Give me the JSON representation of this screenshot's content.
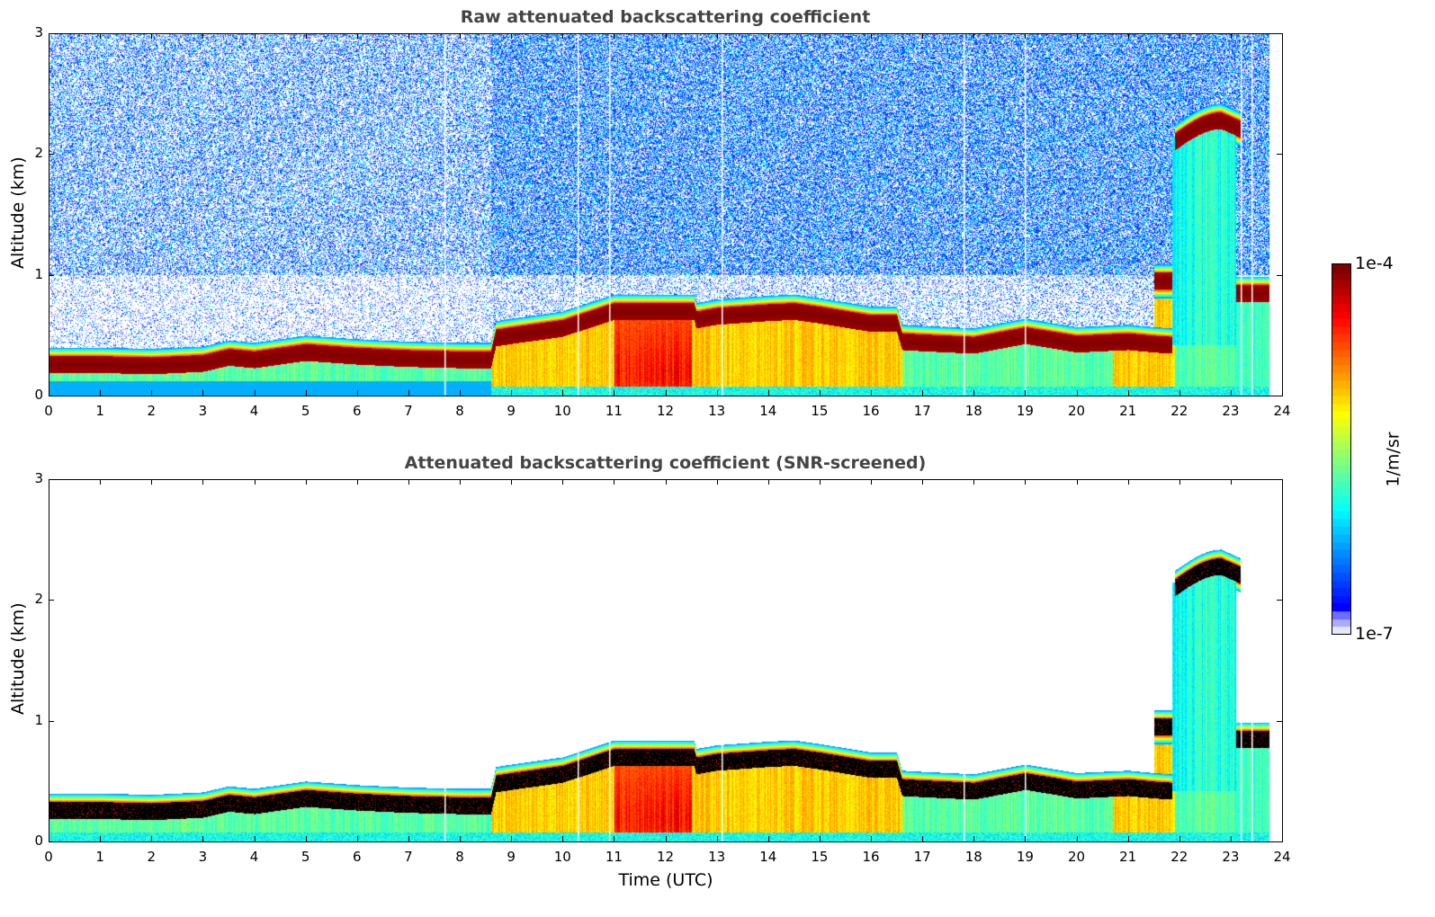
{
  "chart_data": [
    {
      "type": "heatmap",
      "title": "Raw attenuated backscattering coefficient",
      "xlabel": "",
      "ylabel": "Altitude (km)",
      "xlim": [
        0,
        24
      ],
      "ylim": [
        0,
        3
      ],
      "x_ticks": [
        "0",
        "1",
        "2",
        "3",
        "4",
        "5",
        "6",
        "7",
        "8",
        "9",
        "10",
        "11",
        "12",
        "13",
        "14",
        "15",
        "16",
        "17",
        "18",
        "19",
        "20",
        "21",
        "22",
        "23",
        "24"
      ],
      "y_ticks": [
        "0",
        "1",
        "2",
        "3"
      ],
      "screened": false
    },
    {
      "type": "heatmap",
      "title": "Attenuated backscattering coefficient (SNR-screened)",
      "xlabel": "Time (UTC)",
      "ylabel": "Altitude (km)",
      "xlim": [
        0,
        24
      ],
      "ylim": [
        0,
        3
      ],
      "x_ticks": [
        "0",
        "1",
        "2",
        "3",
        "4",
        "5",
        "6",
        "7",
        "8",
        "9",
        "10",
        "11",
        "12",
        "13",
        "14",
        "15",
        "16",
        "17",
        "18",
        "19",
        "20",
        "21",
        "22",
        "23",
        "24"
      ],
      "y_ticks": [
        "0",
        "1",
        "2",
        "3"
      ],
      "screened": true
    }
  ],
  "layer_profile": {
    "time_utc": [
      0,
      1,
      2,
      3,
      3.5,
      4,
      5,
      6,
      7,
      8,
      8.6,
      8.7,
      9,
      10,
      11,
      12,
      12.55,
      12.6,
      13,
      14,
      14.5,
      15,
      16,
      16.5,
      16.6,
      17,
      18,
      19,
      20,
      21,
      21.5,
      21.85
    ],
    "layer_alt_km": [
      0.26,
      0.26,
      0.25,
      0.27,
      0.32,
      0.3,
      0.36,
      0.33,
      0.31,
      0.3,
      0.3,
      0.48,
      0.5,
      0.56,
      0.7,
      0.7,
      0.7,
      0.63,
      0.66,
      0.69,
      0.7,
      0.67,
      0.6,
      0.6,
      0.45,
      0.44,
      0.42,
      0.5,
      0.43,
      0.45,
      0.43,
      0.42
    ],
    "elevated_layers": [
      {
        "t_start": 21.5,
        "t_end": 21.85,
        "alt_km": 0.95
      },
      {
        "t_start": 21.9,
        "t_end": 23.2,
        "alt_km_start": 2.1,
        "alt_km_end": 2.2,
        "alt_km_peak": 2.28
      },
      {
        "t_start": 23.1,
        "t_end": 23.75,
        "alt_km": 0.85
      }
    ],
    "data_end_utc": 23.75
  },
  "colorbar": {
    "max_label": "1e-4",
    "min_label": "1e-7",
    "unit_label": "1/m/sr",
    "vmin": 1e-07,
    "vmax": 0.0001,
    "scale": "log",
    "colormap": "jet"
  }
}
